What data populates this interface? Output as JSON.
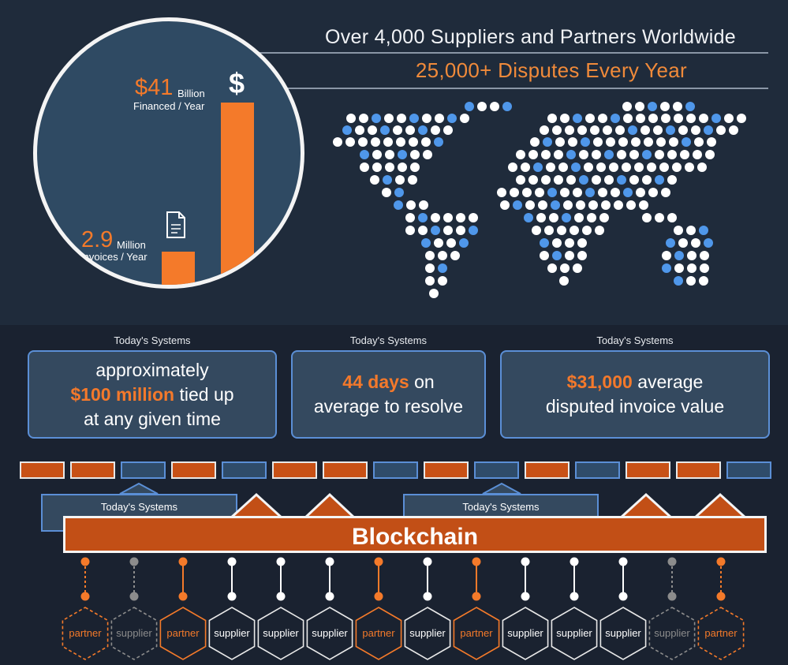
{
  "header": {
    "line1": "Over 4,000 Suppliers and Partners Worldwide",
    "line2": "25,000+ Disputes Every Year"
  },
  "circle": {
    "financed_value": "$41",
    "financed_unit": "Billion",
    "financed_label": "Financed / Year",
    "invoices_value": "2.9",
    "invoices_unit": "Million",
    "invoices_label": "Invoices / Year",
    "dollar_symbol": "$"
  },
  "systems": {
    "label": "Today's Systems",
    "box1": {
      "pre": "approximately",
      "highlight": "$100 million",
      "post1": " tied up",
      "post2": "at any given time"
    },
    "box2": {
      "highlight": "44 days",
      "post1": " on",
      "post2": "average to resolve"
    },
    "box3": {
      "highlight": "$31,000",
      "post1": " average",
      "post2": "disputed invoice value"
    }
  },
  "blockchain": {
    "title": "Blockchain",
    "legacy_left": "Today's Systems",
    "legacy_right": "Today's Systems"
  },
  "chain_blocks": [
    "orange",
    "orange",
    "blue",
    "orange",
    "blue",
    "orange",
    "orange",
    "blue",
    "orange",
    "blue",
    "orange",
    "blue",
    "orange",
    "orange",
    "blue"
  ],
  "nodes": [
    {
      "label": "partner",
      "kind": "partner-dashed"
    },
    {
      "label": "supplier",
      "kind": "supplier-dashed"
    },
    {
      "label": "partner",
      "kind": "partner"
    },
    {
      "label": "supplier",
      "kind": "supplier"
    },
    {
      "label": "supplier",
      "kind": "supplier"
    },
    {
      "label": "supplier",
      "kind": "supplier"
    },
    {
      "label": "partner",
      "kind": "partner"
    },
    {
      "label": "supplier",
      "kind": "supplier"
    },
    {
      "label": "partner",
      "kind": "partner"
    },
    {
      "label": "supplier",
      "kind": "supplier"
    },
    {
      "label": "supplier",
      "kind": "supplier"
    },
    {
      "label": "supplier",
      "kind": "supplier"
    },
    {
      "label": "supplier",
      "kind": "supplier-dashed"
    },
    {
      "label": "partner",
      "kind": "partner-dashed"
    }
  ],
  "colors": {
    "orange": "#f47a2a",
    "blue_dot": "#4f97ea",
    "white_dot": "#ffffff",
    "gray": "#8c8c8c"
  },
  "icons": {
    "document": "document-icon",
    "dollar": "dollar-icon"
  }
}
